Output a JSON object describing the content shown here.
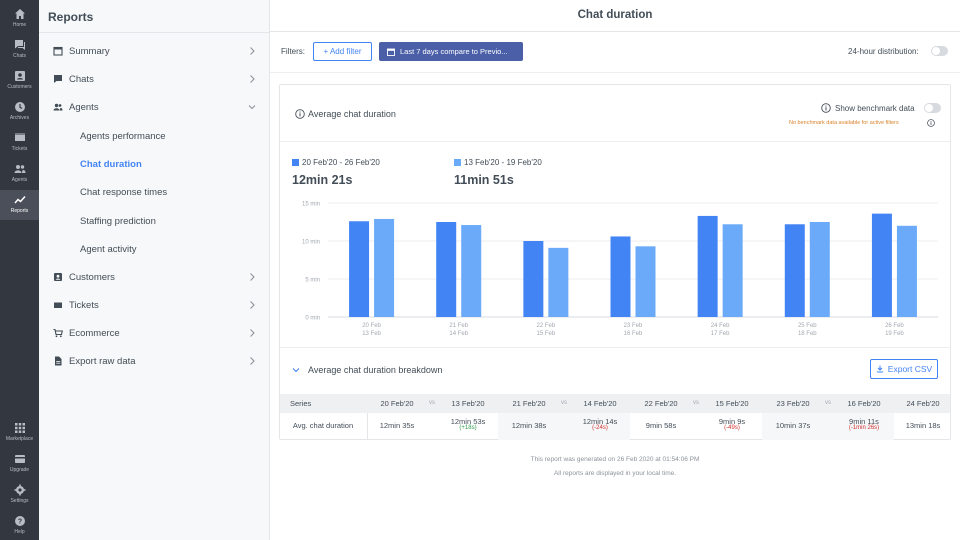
{
  "nav": {
    "top": [
      {
        "label": "Home",
        "icon": "home-icon"
      },
      {
        "label": "Chats",
        "icon": "chats-icon"
      },
      {
        "label": "Customers",
        "icon": "customers-icon"
      },
      {
        "label": "Archives",
        "icon": "archives-icon"
      },
      {
        "label": "Tickets",
        "icon": "tickets-icon"
      },
      {
        "label": "Agents",
        "icon": "agents-icon"
      },
      {
        "label": "Reports",
        "icon": "reports-icon"
      }
    ],
    "bottom": [
      {
        "label": "Marketplace",
        "icon": "marketplace-icon"
      },
      {
        "label": "Upgrade",
        "icon": "upgrade-icon"
      },
      {
        "label": "Settings",
        "icon": "settings-icon"
      },
      {
        "label": "Help",
        "icon": "help-icon"
      }
    ]
  },
  "sidebar": {
    "title": "Reports",
    "items": [
      {
        "label": "Summary",
        "icon": "calendar-icon"
      },
      {
        "label": "Chats",
        "icon": "chat-bubble-icon"
      },
      {
        "label": "Agents",
        "icon": "agents-icon"
      },
      {
        "label": "Customers",
        "icon": "customer-card-icon"
      },
      {
        "label": "Tickets",
        "icon": "ticket-icon"
      },
      {
        "label": "Ecommerce",
        "icon": "cart-icon"
      },
      {
        "label": "Export raw data",
        "icon": "file-icon"
      }
    ],
    "agents_sub": [
      "Agents performance",
      "Chat duration",
      "Chat response times",
      "Staffing prediction",
      "Agent activity"
    ]
  },
  "header": {
    "title": "Chat duration",
    "filters_label": "Filters:",
    "add_filter": "+ Add filter",
    "date_filter": "Last 7 days compare to Previo...",
    "distribution_label": "24-hour distribution:"
  },
  "card": {
    "title": "Average chat duration",
    "benchmark_label": "Show benchmark data",
    "benchmark_note": "No benchmark data available for active filters",
    "legend": [
      {
        "label": "20 Feb'20 - 26 Feb'20",
        "total": "12min 21s",
        "color": "#4384f5"
      },
      {
        "label": "13 Feb'20 - 19 Feb'20",
        "total": "11min 51s",
        "color": "#6aaaf8"
      }
    ],
    "breakdown_title": "Average chat duration breakdown",
    "export_label": "Export CSV"
  },
  "chart_data": {
    "type": "bar",
    "categories": [
      [
        "20 Feb",
        "13 Feb"
      ],
      [
        "21 Feb",
        "14 Feb"
      ],
      [
        "22 Feb",
        "15 Feb"
      ],
      [
        "23 Feb",
        "16 Feb"
      ],
      [
        "24 Feb",
        "17 Feb"
      ],
      [
        "25 Feb",
        "18 Feb"
      ],
      [
        "26 Feb",
        "19 Feb"
      ]
    ],
    "series": [
      {
        "name": "20 Feb'20 - 26 Feb'20",
        "values": [
          12.6,
          12.5,
          10.0,
          10.6,
          13.3,
          12.2,
          13.6
        ]
      },
      {
        "name": "13 Feb'20 - 19 Feb'20",
        "values": [
          12.9,
          12.1,
          9.1,
          9.3,
          12.2,
          12.5,
          12.0
        ]
      }
    ],
    "yticks": [
      "0 min",
      "5 min",
      "10 min",
      "15 min"
    ],
    "ylim": [
      0,
      15
    ],
    "grid": true
  },
  "table": {
    "series_header": "Series",
    "row_label": "Avg. chat duration",
    "vs": "vs",
    "columns": [
      {
        "date": "20 Feb'20",
        "value": "12min 35s",
        "cmp_date": "13 Feb'20",
        "cmp_value": "12min 53s",
        "delta": "(+18s)",
        "delta_sign": "pos"
      },
      {
        "date": "21 Feb'20",
        "value": "12min 38s",
        "cmp_date": "14 Feb'20",
        "cmp_value": "12min 14s",
        "delta": "(-24s)",
        "delta_sign": "neg"
      },
      {
        "date": "22 Feb'20",
        "value": "9min 58s",
        "cmp_date": "15 Feb'20",
        "cmp_value": "9min 9s",
        "delta": "(-49s)",
        "delta_sign": "neg"
      },
      {
        "date": "23 Feb'20",
        "value": "10min 37s",
        "cmp_date": "16 Feb'20",
        "cmp_value": "9min 11s",
        "delta": "(-1min 26s)",
        "delta_sign": "neg"
      }
    ],
    "last_date": "24 Feb'20",
    "last_value": "13min 18s"
  },
  "footer": {
    "generated": "This report was generated on 26 Feb 2020 at 01:54:06 PM",
    "local_time": "All reports are displayed in your local time."
  }
}
